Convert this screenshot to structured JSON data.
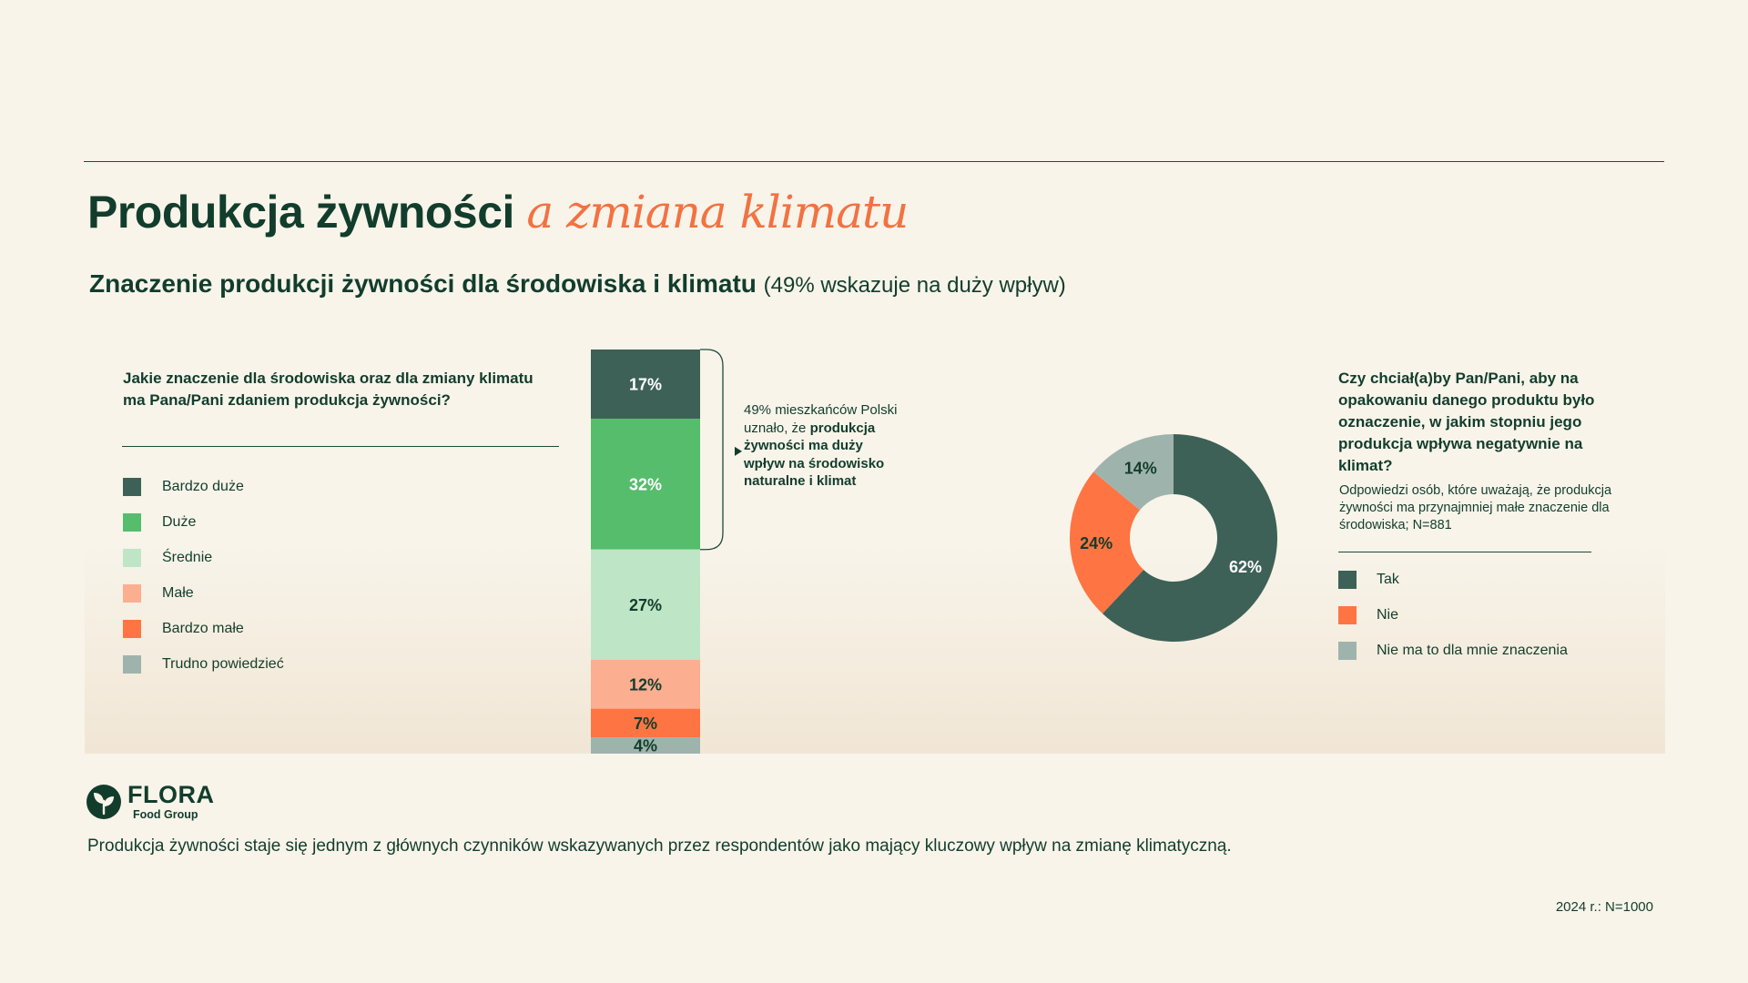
{
  "header": {
    "title": "Produkcja żywności",
    "title_accent": "a zmiana klimatu",
    "subtitle": "Znaczenie produkcji żywności dla środowiska i klimatu",
    "subtitle_note": "(49% wskazuje na duży wpływ)"
  },
  "left": {
    "question": "Jakie znaczenie dla środowiska oraz dla zmiany klimatu ma Pana/Pani zdaniem produkcja żywności?",
    "note_plain": "49% mieszkańców Polski uznało, że",
    "note_bold": "produkcja żywności ma duży wpływ na środowisko naturalne i klimat"
  },
  "right": {
    "question": "Czy chciał(a)by Pan/Pani, aby na opakowaniu danego produktu było oznaczenie, w jakim stopniu jego produkcja wpływa negatywnie na klimat?",
    "subtext": "Odpowiedzi osób, które uważają, że produkcja żywności ma przynajmniej małe znaczenie dla środowiska; N=881"
  },
  "chart_data": [
    {
      "type": "bar",
      "stacked": true,
      "unit": "%",
      "categories": [
        "Bardzo duże",
        "Duże",
        "Średnie",
        "Małe",
        "Bardzo małe",
        "Trudno powiedzieć"
      ],
      "values": [
        17,
        32,
        27,
        12,
        7,
        4
      ],
      "colors": [
        "#3d6156",
        "#55bd6b",
        "#bee6c6",
        "#fcae90",
        "#ff7443",
        "#9fb3ad"
      ],
      "label_colors": [
        "#ffffff",
        "#ffffff",
        "#123d2c",
        "#123d2c",
        "#123d2c",
        "#123d2c"
      ],
      "labels": [
        "17%",
        "32%",
        "27%",
        "12%",
        "7%",
        "4%"
      ],
      "bracket_label": "49%"
    },
    {
      "type": "pie",
      "donut": true,
      "unit": "%",
      "categories": [
        "Tak",
        "Nie",
        "Nie ma to dla mnie znaczenia"
      ],
      "values": [
        62,
        24,
        14
      ],
      "colors": [
        "#3d6156",
        "#ff7443",
        "#9fb3ad"
      ],
      "label_colors": [
        "#ffffff",
        "#123d2c",
        "#123d2c"
      ],
      "labels": [
        "62%",
        "24%",
        "14%"
      ]
    }
  ],
  "footer": {
    "logo_name": "FLORA",
    "logo_sub": "Food Group",
    "text": "Produkcja żywności staje się jednym z głównych czynników wskazywanych przez respondentów jako mający kluczowy wpływ na zmianę klimatyczną.",
    "sample": "2024 r.: N=1000"
  }
}
